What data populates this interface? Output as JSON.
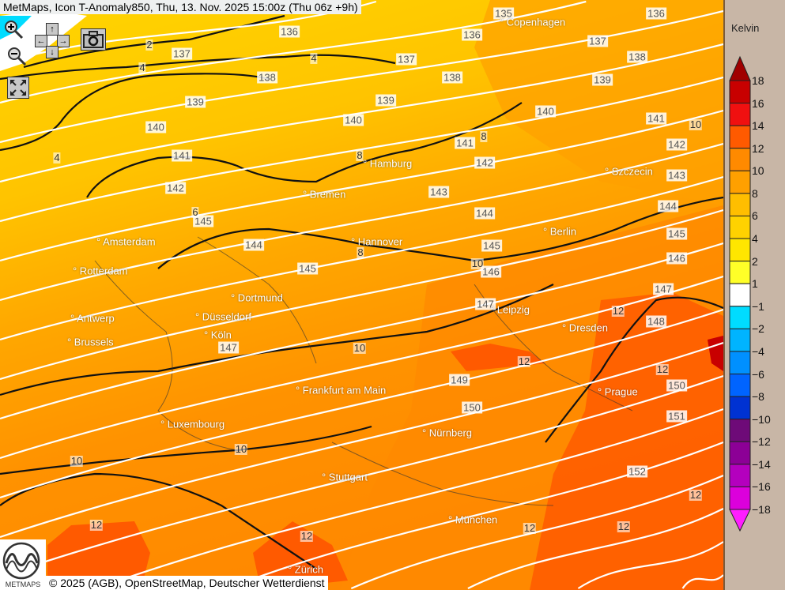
{
  "title": "MetMaps, Icon T-Anomaly850, Thu, 13. Nov. 2025 15:00z (Thu 06z +9h)",
  "controls": {
    "zoom_in": "zoom-in-icon",
    "zoom_out": "zoom-out-icon",
    "pan_up": "↑",
    "pan_down": "↓",
    "pan_left": "←",
    "pan_right": "→",
    "snapshot": "camera-icon",
    "fullscreen": "fullscreen-icon"
  },
  "legend": {
    "unit": "Kelvin",
    "labels": [
      "18",
      "16",
      "14",
      "12",
      "10",
      "8",
      "6",
      "4",
      "2",
      "1",
      "−1",
      "−2",
      "−4",
      "−6",
      "−8",
      "−10",
      "−12",
      "−14",
      "−16",
      "−18"
    ],
    "colors": [
      "#a00000",
      "#c80000",
      "#f01010",
      "#ff5a00",
      "#ff8a00",
      "#ffa000",
      "#ffbe00",
      "#ffd200",
      "#ffe600",
      "#ffff28",
      "#ffffff",
      "#00dcff",
      "#00b4ff",
      "#0090ff",
      "#0064ff",
      "#0032d2",
      "#6e0a78",
      "#8c0096",
      "#b400be",
      "#dc00dc",
      "#ff1eff"
    ]
  },
  "cities": [
    "Copenhagen",
    "Hamburg",
    "Bremen",
    "Szczecin",
    "Amsterdam",
    "Hannover",
    "Berlin",
    "Rotterdam",
    "Dortmund",
    "Leipzig",
    "Antwerp",
    "Düsseldorf",
    "Dresden",
    "Brussels",
    "Köln",
    "Frankfurt am Main",
    "Prague",
    "Luxembourg",
    "Nürnberg",
    "Stuttgart",
    "München",
    "Zürich"
  ],
  "isohypse_labels": [
    "135",
    "136",
    "136",
    "136",
    "137",
    "137",
    "137",
    "138",
    "138",
    "138",
    "139",
    "139",
    "139",
    "140",
    "140",
    "140",
    "141",
    "141",
    "141",
    "142",
    "142",
    "142",
    "143",
    "143",
    "144",
    "144",
    "144",
    "145",
    "145",
    "145",
    "145",
    "146",
    "146",
    "147",
    "147",
    "147",
    "148",
    "149",
    "150",
    "150",
    "151",
    "152"
  ],
  "anomaly_labels": [
    "2",
    "4",
    "4",
    "4",
    "6",
    "8",
    "8",
    "8",
    "10",
    "10",
    "10",
    "10",
    "10",
    "12",
    "12",
    "12",
    "12",
    "12",
    "12",
    "12",
    "12"
  ],
  "map_colors": {
    "t4_6": "#ffd200",
    "t6_8": "#ffbe00",
    "t8_10": "#ffa000",
    "t10_12": "#ff8a00",
    "t12_14": "#ff5a00",
    "isohypse": "#ffffff",
    "contour": "#111111"
  },
  "copyright": "© 2025 (AGB), OpenStreetMap, Deutscher Wetterdienst",
  "logo_text": "METMAPS"
}
